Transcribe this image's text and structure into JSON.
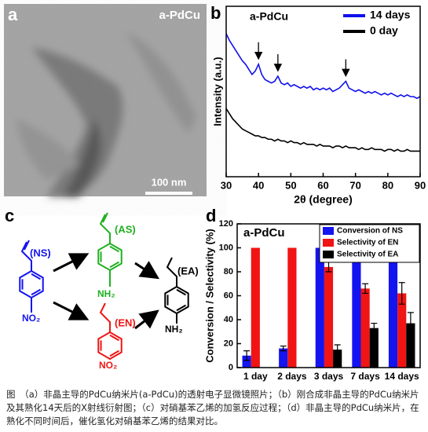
{
  "panel_labels": [
    "a",
    "b",
    "c",
    "d"
  ],
  "image": {
    "label": "a-PdCu",
    "scale_bar": "100 nm"
  },
  "chart_data": [
    {
      "type": "line",
      "annotation": "a-PdCu",
      "xlabel": "2θ (degree)",
      "ylabel": "Intensity (a.u.)",
      "x": [
        30,
        31,
        32,
        33,
        34,
        35,
        36,
        37,
        38,
        39,
        40,
        41,
        42,
        43,
        44,
        45,
        46,
        47,
        48,
        49,
        50,
        51,
        52,
        53,
        54,
        55,
        56,
        57,
        58,
        59,
        60,
        61,
        62,
        63,
        64,
        65,
        66,
        67,
        68,
        69,
        70,
        71,
        72,
        73,
        74,
        75,
        76,
        77,
        78,
        79,
        80,
        81,
        82,
        83,
        84,
        85,
        86,
        87,
        88,
        89,
        90
      ],
      "series": [
        {
          "name": "14 days",
          "color": "#1010ee",
          "values": [
            84,
            80,
            77,
            74,
            71,
            68,
            66,
            63,
            60,
            62,
            66,
            60,
            57,
            56,
            55,
            56,
            59,
            55,
            54,
            55,
            53,
            54,
            53,
            52,
            53,
            52,
            53,
            51,
            52,
            51,
            52,
            51,
            52,
            50,
            51,
            52,
            54,
            56,
            52,
            51,
            50,
            51,
            50,
            49,
            50,
            49,
            50,
            49,
            48,
            49,
            48,
            49,
            48,
            47,
            48,
            47,
            48,
            47,
            47,
            46,
            47
          ]
        },
        {
          "name": "0 day",
          "color": "#000000",
          "values": [
            40,
            37,
            34,
            32,
            30,
            28,
            27,
            26,
            25,
            24,
            24,
            23,
            23,
            22,
            22,
            21,
            22,
            21,
            21,
            20,
            21,
            20,
            20,
            19,
            20,
            19,
            19,
            19,
            18,
            19,
            18,
            18,
            18,
            17,
            18,
            18,
            17,
            18,
            17,
            17,
            17,
            16,
            17,
            16,
            16,
            17,
            16,
            16,
            16,
            15,
            16,
            16,
            15,
            16,
            15,
            15,
            16,
            15,
            15,
            15,
            15
          ]
        }
      ],
      "markers": [
        40,
        46,
        67
      ],
      "xlim": [
        30,
        90
      ],
      "xticks": [
        30,
        40,
        50,
        60,
        70,
        80,
        90
      ],
      "ylim": [
        0,
        100
      ],
      "legend": "upper right"
    },
    {
      "type": "bar",
      "annotation": "a-PdCu",
      "ylabel": "Conversion / Selectivity (%)",
      "categories": [
        "1 day",
        "2 days",
        "3 days",
        "7 days",
        "14 days"
      ],
      "series": [
        {
          "name": "Conversion of NS",
          "color": "#1414f0",
          "values": [
            10,
            16,
            100,
            100,
            100
          ],
          "errors": [
            4,
            2,
            null,
            null,
            null
          ]
        },
        {
          "name": "Selectivity of EN",
          "color": "#f01414",
          "values": [
            100,
            100,
            84,
            66,
            62
          ],
          "errors": [
            null,
            null,
            4,
            4,
            9
          ]
        },
        {
          "name": "Selectivity of EA",
          "color": "#000000",
          "values": [
            0,
            0,
            15,
            33,
            37
          ],
          "errors": [
            null,
            null,
            4,
            4,
            9
          ]
        }
      ],
      "ylim": [
        0,
        120
      ],
      "yticks": [
        0,
        20,
        40,
        60,
        80,
        100,
        120
      ],
      "legend": "upper right"
    }
  ],
  "scheme": {
    "ns": "(NS)",
    "as": "(AS)",
    "en": "(EN)",
    "ea": "(EA)",
    "as_group": "NH₂",
    "ea_group": "NH₂",
    "ns_group": "NO₂",
    "en_group": "NO₂"
  },
  "caption": "图　（a）非晶主导的PdCu纳米片(a-PdCu)的透射电子显微镜照片；（b）刚合成非晶主导的PdCu纳米片及其熟化14天后的X射线衍射图；（c）对硝基苯乙烯的加氢反应过程；（d）非晶主导的PdCu纳米片，在熟化不同时间后，催化氢化对硝基苯乙烯的结果对比。"
}
